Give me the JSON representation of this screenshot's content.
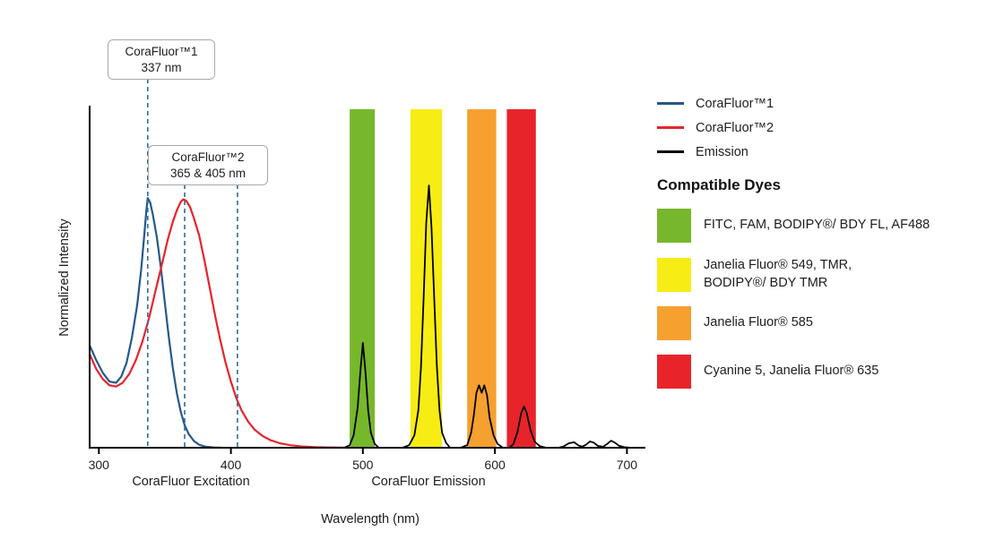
{
  "chart": {
    "y_axis_label": "Normalized Intensity",
    "x_axis_label": "Wavelength (nm)",
    "x_sublabels": {
      "excitation": "CoraFluor Excitation",
      "emission": "CoraFluor Emission"
    }
  },
  "annotations": {
    "box1": {
      "line1": "CoraFluor™1",
      "line2": "337 nm"
    },
    "box2": {
      "line1": "CoraFluor™2",
      "line2": "365 & 405 nm"
    }
  },
  "legend": {
    "items": [
      {
        "label": "CoraFluor™1",
        "color": "#25598a"
      },
      {
        "label": "CoraFluor™2",
        "color": "#e8242b"
      },
      {
        "label": "Emission",
        "color": "#000000"
      }
    ]
  },
  "dyes": {
    "title": "Compatible Dyes",
    "items": [
      {
        "color": "#77b72c",
        "lines": [
          "FITC, FAM, BODIPY®/ BDY FL, AF488"
        ]
      },
      {
        "color": "#f7ec13",
        "lines": [
          "Janelia Fluor® 549, TMR,",
          "BODIPY®/ BDY TMR"
        ]
      },
      {
        "color": "#f5a02f",
        "lines": [
          "Janelia Fluor® 585"
        ]
      },
      {
        "color": "#e8242b",
        "lines": [
          "Cyanine 5, Janelia Fluor® 635"
        ]
      }
    ]
  },
  "chart_data": {
    "type": "line",
    "title": "CoraFluor excitation and emission spectra with compatible dye filter bands",
    "xlabel": "Wavelength (nm)",
    "ylabel": "Normalized Intensity",
    "xlim": [
      293,
      714
    ],
    "ylim": [
      0,
      1.37
    ],
    "xticks": [
      300,
      400,
      500,
      600,
      700
    ],
    "grid": false,
    "legend_position": "top-right",
    "dashed_lines": [
      {
        "x": 337,
        "color": "#2e6ba0",
        "label": "CoraFluor™1 337 nm"
      },
      {
        "x": 365,
        "color": "#2e6ba0",
        "label": "CoraFluor™2 365 nm"
      },
      {
        "x": 405,
        "color": "#2e6ba0",
        "label": "CoraFluor™2 405 nm"
      }
    ],
    "bands": [
      {
        "from": 490,
        "to": 509,
        "color": "#77b72c",
        "label": "FITC, FAM, BODIPY/BDY FL, AF488"
      },
      {
        "from": 536,
        "to": 560,
        "color": "#f7ec13",
        "label": "Janelia Fluor 549, TMR, BODIPY/BDY TMR"
      },
      {
        "from": 579,
        "to": 601,
        "color": "#f5a02f",
        "label": "Janelia Fluor 585"
      },
      {
        "from": 609,
        "to": 631,
        "color": "#e8242b",
        "label": "Cyanine 5, Janelia Fluor 635"
      }
    ],
    "series": [
      {
        "name": "CoraFluor™1 excitation",
        "color": "#25598a",
        "points": [
          [
            293,
            0.41
          ],
          [
            298,
            0.35
          ],
          [
            303,
            0.3
          ],
          [
            308,
            0.265
          ],
          [
            313,
            0.26
          ],
          [
            317,
            0.285
          ],
          [
            321,
            0.34
          ],
          [
            325,
            0.44
          ],
          [
            329,
            0.57
          ],
          [
            332,
            0.71
          ],
          [
            334,
            0.83
          ],
          [
            336,
            0.95
          ],
          [
            337,
            1.0
          ],
          [
            339,
            0.98
          ],
          [
            341,
            0.93
          ],
          [
            344,
            0.84
          ],
          [
            347,
            0.72
          ],
          [
            350,
            0.58
          ],
          [
            353,
            0.44
          ],
          [
            356,
            0.32
          ],
          [
            359,
            0.22
          ],
          [
            362,
            0.145
          ],
          [
            365,
            0.09
          ],
          [
            368,
            0.055
          ],
          [
            372,
            0.027
          ],
          [
            376,
            0.012
          ],
          [
            381,
            0.004
          ],
          [
            387,
            0.001
          ],
          [
            393,
            0
          ]
        ]
      },
      {
        "name": "CoraFluor™2 excitation",
        "color": "#e8242b",
        "points": [
          [
            293,
            0.375
          ],
          [
            298,
            0.315
          ],
          [
            303,
            0.275
          ],
          [
            308,
            0.25
          ],
          [
            313,
            0.245
          ],
          [
            318,
            0.26
          ],
          [
            323,
            0.295
          ],
          [
            328,
            0.35
          ],
          [
            333,
            0.425
          ],
          [
            338,
            0.52
          ],
          [
            343,
            0.63
          ],
          [
            348,
            0.74
          ],
          [
            352,
            0.83
          ],
          [
            356,
            0.905
          ],
          [
            359,
            0.95
          ],
          [
            362,
            0.985
          ],
          [
            364,
            0.995
          ],
          [
            366,
            0.99
          ],
          [
            369,
            0.965
          ],
          [
            372,
            0.92
          ],
          [
            376,
            0.85
          ],
          [
            380,
            0.75
          ],
          [
            384,
            0.64
          ],
          [
            388,
            0.53
          ],
          [
            392,
            0.43
          ],
          [
            396,
            0.34
          ],
          [
            400,
            0.265
          ],
          [
            404,
            0.2
          ],
          [
            408,
            0.15
          ],
          [
            413,
            0.105
          ],
          [
            418,
            0.072
          ],
          [
            424,
            0.047
          ],
          [
            430,
            0.03
          ],
          [
            437,
            0.018
          ],
          [
            445,
            0.01
          ],
          [
            454,
            0.005
          ],
          [
            464,
            0.002
          ],
          [
            476,
            0.001
          ],
          [
            490,
            0
          ]
        ]
      },
      {
        "name": "Emission",
        "color": "#000000",
        "points": [
          [
            470,
            0
          ],
          [
            486,
            0
          ],
          [
            490,
            0.01
          ],
          [
            493,
            0.05
          ],
          [
            496,
            0.16
          ],
          [
            498,
            0.3
          ],
          [
            500,
            0.42
          ],
          [
            502,
            0.3
          ],
          [
            504,
            0.15
          ],
          [
            506,
            0.06
          ],
          [
            509,
            0.015
          ],
          [
            512,
            0
          ],
          [
            520,
            0
          ],
          [
            530,
            0
          ],
          [
            535,
            0.01
          ],
          [
            539,
            0.05
          ],
          [
            542,
            0.15
          ],
          [
            544,
            0.32
          ],
          [
            546,
            0.6
          ],
          [
            548,
            0.9
          ],
          [
            550,
            1.05
          ],
          [
            552,
            0.88
          ],
          [
            554,
            0.6
          ],
          [
            556,
            0.33
          ],
          [
            558,
            0.15
          ],
          [
            560,
            0.06
          ],
          [
            563,
            0.02
          ],
          [
            566,
            0
          ],
          [
            574,
            0
          ],
          [
            579,
            0.01
          ],
          [
            582,
            0.06
          ],
          [
            584,
            0.13
          ],
          [
            586,
            0.22
          ],
          [
            588,
            0.25
          ],
          [
            590,
            0.22
          ],
          [
            592,
            0.25
          ],
          [
            594,
            0.21
          ],
          [
            596,
            0.12
          ],
          [
            599,
            0.05
          ],
          [
            602,
            0.015
          ],
          [
            606,
            0
          ],
          [
            611,
            0
          ],
          [
            614,
            0.015
          ],
          [
            617,
            0.06
          ],
          [
            620,
            0.14
          ],
          [
            622,
            0.165
          ],
          [
            624,
            0.14
          ],
          [
            627,
            0.07
          ],
          [
            630,
            0.025
          ],
          [
            634,
            0.006
          ],
          [
            639,
            0
          ],
          [
            648,
            0
          ],
          [
            652,
            0.005
          ],
          [
            656,
            0.018
          ],
          [
            660,
            0.022
          ],
          [
            663,
            0.01
          ],
          [
            666,
            0.004
          ],
          [
            669,
            0.012
          ],
          [
            672,
            0.025
          ],
          [
            675,
            0.02
          ],
          [
            678,
            0.007
          ],
          [
            682,
            0.004
          ],
          [
            685,
            0.015
          ],
          [
            688,
            0.028
          ],
          [
            691,
            0.02
          ],
          [
            694,
            0.008
          ],
          [
            698,
            0.002
          ],
          [
            703,
            0
          ]
        ]
      }
    ]
  }
}
